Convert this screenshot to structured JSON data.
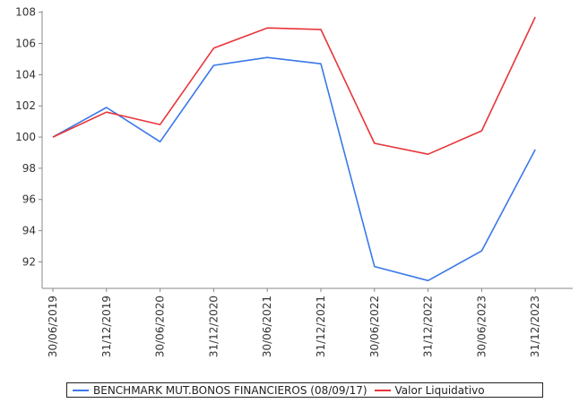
{
  "chart_data": {
    "type": "line",
    "title": "",
    "xlabel": "",
    "ylabel": "",
    "categories": [
      "30/06/2019",
      "31/12/2019",
      "30/06/2020",
      "31/12/2020",
      "30/06/2021",
      "31/12/2021",
      "30/06/2022",
      "31/12/2022",
      "30/06/2023",
      "31/12/2023"
    ],
    "yticks": [
      92,
      94,
      96,
      98,
      100,
      102,
      104,
      106,
      108
    ],
    "ylim": [
      90.3,
      108.1
    ],
    "grid": false,
    "legend_position": "bottom",
    "series": [
      {
        "name": "BENCHMARK MUT.BONOS FINANCIEROS (08/09/17)",
        "color": "#3a78e8",
        "values": [
          100.0,
          101.9,
          99.7,
          104.6,
          105.1,
          104.7,
          91.7,
          90.8,
          92.7,
          99.2
        ]
      },
      {
        "name": "Valor Liquidativo",
        "color": "#e8353a",
        "values": [
          100.0,
          101.6,
          100.8,
          105.7,
          107.0,
          106.9,
          99.6,
          98.9,
          100.4,
          107.7
        ]
      }
    ]
  }
}
